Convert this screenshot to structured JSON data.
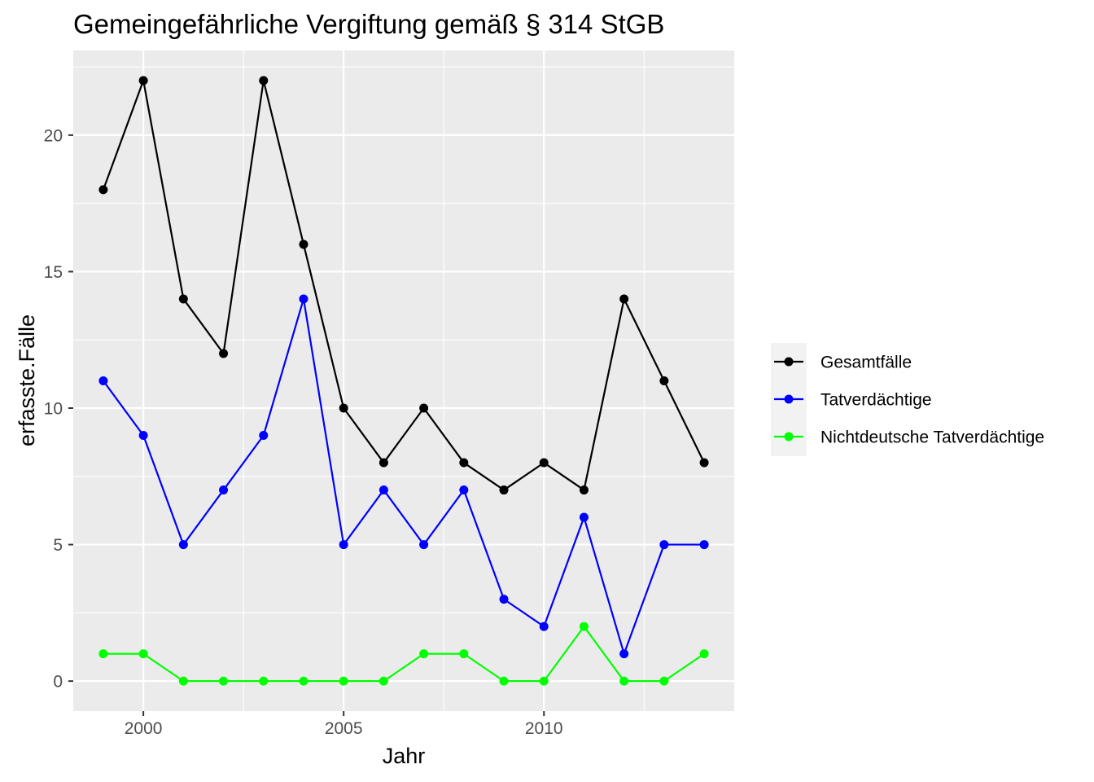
{
  "chart_data": {
    "type": "line",
    "title": "Gemeingefährliche Vergiftung gemäß § 314 StGB",
    "xlabel": "Jahr",
    "ylabel": "erfasste.Fälle",
    "x": [
      1999,
      2000,
      2001,
      2002,
      2003,
      2004,
      2005,
      2006,
      2007,
      2008,
      2009,
      2010,
      2011,
      2012,
      2013,
      2014
    ],
    "series": [
      {
        "name": "Gesamtfälle",
        "color": "#000000",
        "values": [
          18,
          22,
          14,
          12,
          22,
          16,
          10,
          8,
          10,
          8,
          7,
          8,
          7,
          14,
          11,
          8
        ]
      },
      {
        "name": "Tatverdächtige",
        "color": "#0000ff",
        "values": [
          11,
          9,
          5,
          7,
          9,
          14,
          5,
          7,
          5,
          7,
          3,
          2,
          6,
          1,
          5,
          5
        ]
      },
      {
        "name": "Nichtdeutsche Tatverdächtige",
        "color": "#00ff00",
        "values": [
          1,
          1,
          0,
          0,
          0,
          0,
          0,
          0,
          1,
          1,
          0,
          0,
          2,
          0,
          0,
          1
        ]
      }
    ],
    "xticks": [
      "2000",
      "2005",
      "2010"
    ],
    "yticks": [
      "0",
      "5",
      "10",
      "15",
      "20"
    ],
    "xlim": [
      1998.25,
      2014.75
    ],
    "ylim": [
      -1.1,
      23.1
    ],
    "grid": true,
    "legend_position": "right",
    "panel_color": "#ebebeb",
    "grid_color": "#ffffff"
  }
}
